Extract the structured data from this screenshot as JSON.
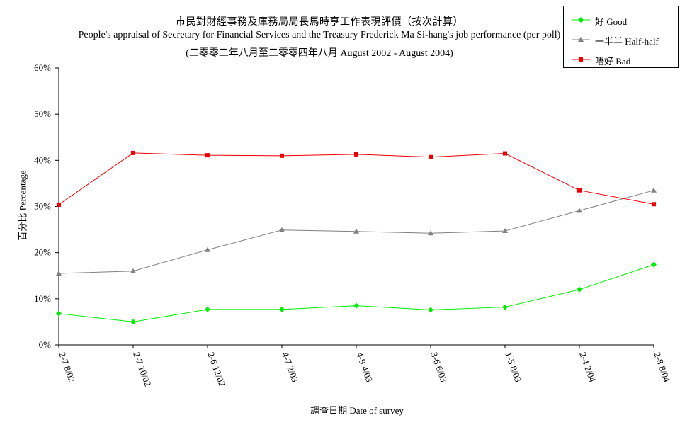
{
  "title": {
    "line1": "市民對財經事務及庫務局局長馬時亨工作表現評價（按次計算）",
    "line2": "People's appraisal of Secretary for Financial Services and the Treasury Frederick Ma Si-hang's job performance (per poll)",
    "line3": "(二零零二年八月至二零零四年八月 August 2002 - August 2004)"
  },
  "chart_data": {
    "type": "line",
    "xlabel": "調查日期 Date of survey",
    "ylabel": "百分比 Percentage",
    "categories": [
      "2-7/8/02",
      "2-7/10/02",
      "2-6/12/02",
      "4-7/2/03",
      "4-9/4/03",
      "3-6/6/03",
      "1-5/8/03",
      "2-4/2/04",
      "2-8/8/04"
    ],
    "ylim": [
      0,
      60
    ],
    "yticks": [
      "0%",
      "10%",
      "20%",
      "30%",
      "40%",
      "50%",
      "60%"
    ],
    "grid": false,
    "legend_position": "top-right",
    "series": [
      {
        "name": "好 Good",
        "color": "#00ee00",
        "marker": "diamond",
        "values": [
          6.8,
          5.0,
          7.7,
          7.7,
          8.5,
          7.6,
          8.2,
          12.0,
          17.4
        ]
      },
      {
        "name": "一半半 Half-half",
        "color": "#808080",
        "marker": "triangle",
        "values": [
          15.5,
          16.0,
          20.6,
          24.9,
          24.6,
          24.2,
          24.7,
          29.1,
          33.5
        ]
      },
      {
        "name": "唔好 Bad",
        "color": "#ee0000",
        "marker": "square",
        "values": [
          30.4,
          41.6,
          41.1,
          41.0,
          41.3,
          40.7,
          41.5,
          33.5,
          30.5
        ]
      }
    ]
  }
}
